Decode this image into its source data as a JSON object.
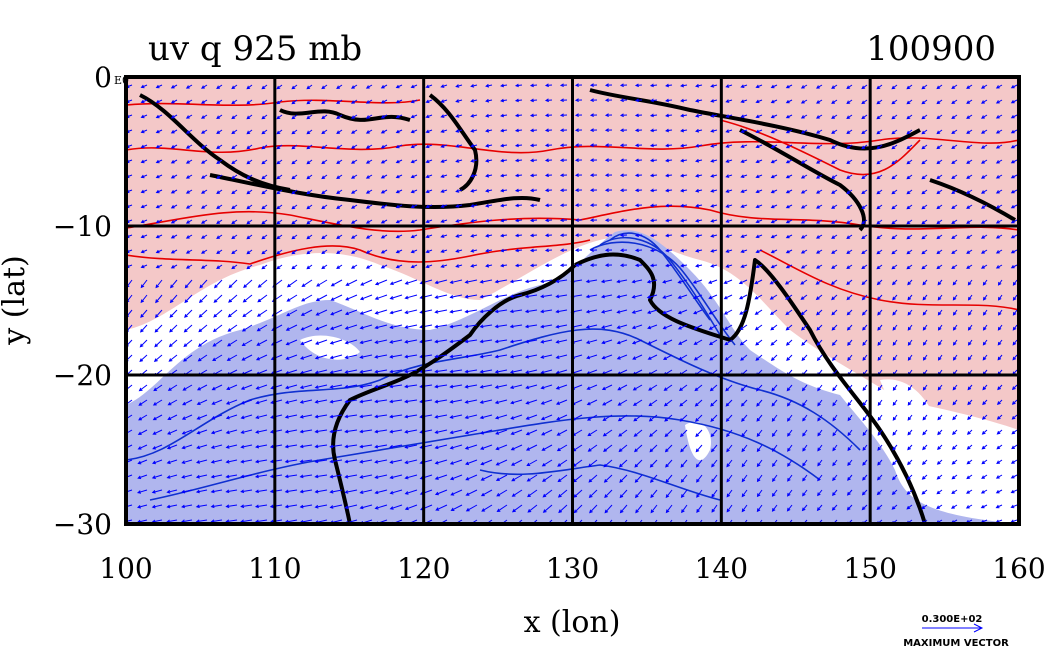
{
  "chart_data": {
    "type": "contour",
    "title": "uv q 925 mb",
    "title_right": "100900",
    "xlabel": "x (lon)",
    "ylabel": "y (lat)",
    "xlim": [
      100,
      160
    ],
    "ylim": [
      -30,
      0
    ],
    "x_ticks": [
      "100",
      "110",
      "120",
      "130",
      "140",
      "150",
      "160"
    ],
    "y_ticks": [
      "0",
      "−10",
      "−20",
      "−30"
    ],
    "y_tick_suffix_top": "E0",
    "grid": true,
    "vector_legend_value": "0.300E+02",
    "vector_legend_label": "MAXIMUM VECTOR",
    "colors": {
      "positive": "#f4c8c8",
      "negative": "#b0b6ee",
      "pos_line": "#e60000",
      "neg_line": "#1030d0",
      "coast": "#000000",
      "vector": "#0000ff"
    }
  }
}
